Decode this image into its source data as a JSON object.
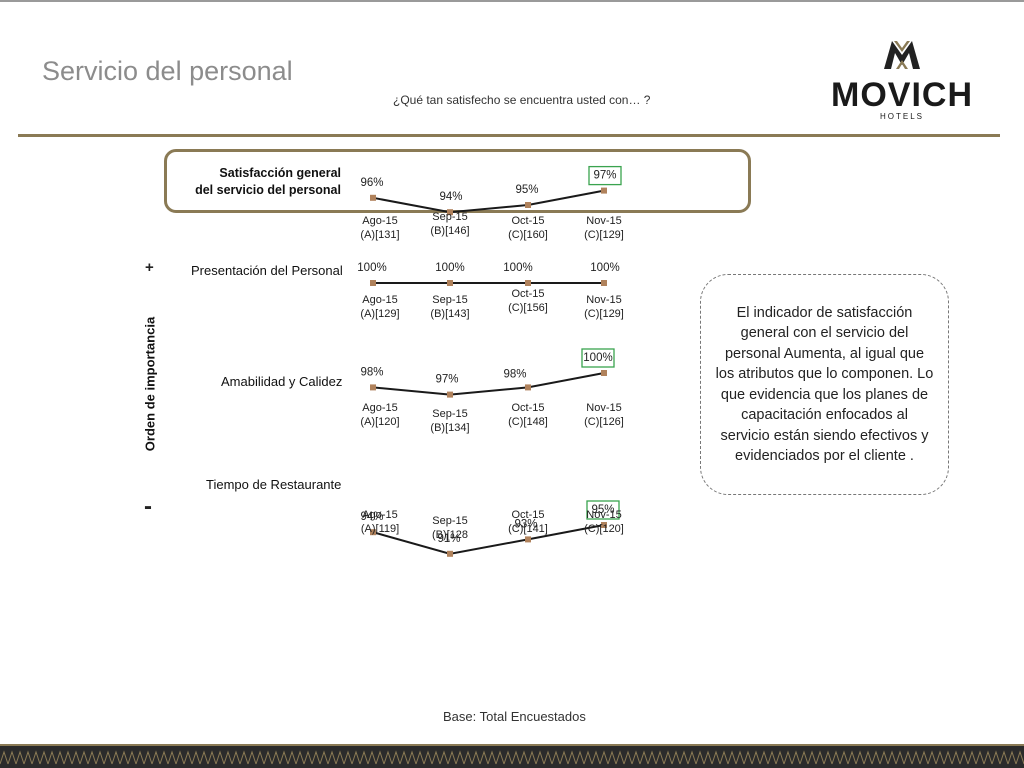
{
  "header": {
    "title": "Servicio del personal",
    "question": "¿Qué tan satisfecho se encuentra usted con… ?"
  },
  "logo": {
    "brand": "MOVICH",
    "sub": "HOTELS",
    "icon": "movich-monogram-icon"
  },
  "axis_label": "Orden de importancia",
  "importance_high": "+",
  "importance_low": "-",
  "rows": [
    {
      "label_line1": "Satisfacción general",
      "label_line2": "del servicio del personal"
    },
    {
      "label": "Presentación del Personal"
    },
    {
      "label": "Amabilidad y Calidez"
    },
    {
      "label": "Tiempo de Restaurante"
    }
  ],
  "callout": "El indicador de satisfacción general con el servicio del personal Aumenta, al igual que los atributos que lo componen. Lo que evidencia que los planes de capacitación enfocados al servicio están siendo efectivos y evidenciados por el cliente .",
  "base": "Base: Total Encuestados",
  "colors": {
    "gold": "#8a7a55",
    "marker": "#b0825c",
    "highlight_box": "#3aa34f",
    "title_gray": "#8c8c8c"
  },
  "chart_data": [
    {
      "type": "line",
      "series": [
        {
          "name": "Satisfacción general del servicio del personal",
          "values": [
            96,
            94,
            95,
            97
          ]
        }
      ],
      "value_labels": [
        "96%",
        "94%",
        "95%",
        "97%"
      ],
      "categories": [
        "Ago-15",
        "Sep-15",
        "Oct-15",
        "Nov-15"
      ],
      "sample_labels": [
        "(A)[131]",
        "(B)[146]",
        "(C)[160]",
        "(C)[129]"
      ],
      "highlighted_index": 3,
      "ylim": [
        90,
        100
      ]
    },
    {
      "type": "line",
      "series": [
        {
          "name": "Presentación del Personal",
          "values": [
            100,
            100,
            100,
            100
          ]
        }
      ],
      "value_labels": [
        "100%",
        "100%",
        "100%",
        "100%"
      ],
      "categories": [
        "Ago-15",
        "Sep-15",
        "Oct-15",
        "Nov-15"
      ],
      "sample_labels": [
        "(A)[129]",
        "(B)[143]",
        "(C)[156]",
        "(C)[129]"
      ],
      "highlighted_index": -1,
      "ylim": [
        90,
        100
      ]
    },
    {
      "type": "line",
      "series": [
        {
          "name": "Amabilidad y Calidez",
          "values": [
            98,
            97,
            98,
            100
          ]
        }
      ],
      "value_labels": [
        "98%",
        "97%",
        "98%",
        "100%"
      ],
      "categories": [
        "Ago-15",
        "Sep-15",
        "Oct-15",
        "Nov-15"
      ],
      "sample_labels": [
        "(A)[120]",
        "(B)[134]",
        "(C)[148]",
        "(C)[126]"
      ],
      "highlighted_index": 3,
      "ylim": [
        90,
        100
      ]
    },
    {
      "type": "line",
      "series": [
        {
          "name": "Tiempo de Restaurante",
          "values": [
            94,
            91,
            93,
            95
          ]
        }
      ],
      "value_labels": [
        "94%",
        "91%",
        "93%",
        "95%"
      ],
      "categories": [
        "Ago-15",
        "Sep-15",
        "Oct-15",
        "Nov-15"
      ],
      "sample_labels": [
        "(A)[119]",
        "(B)[128",
        "(C)[141]",
        "(C)[120]"
      ],
      "highlighted_index": 3,
      "ylim": [
        90,
        100
      ]
    }
  ]
}
